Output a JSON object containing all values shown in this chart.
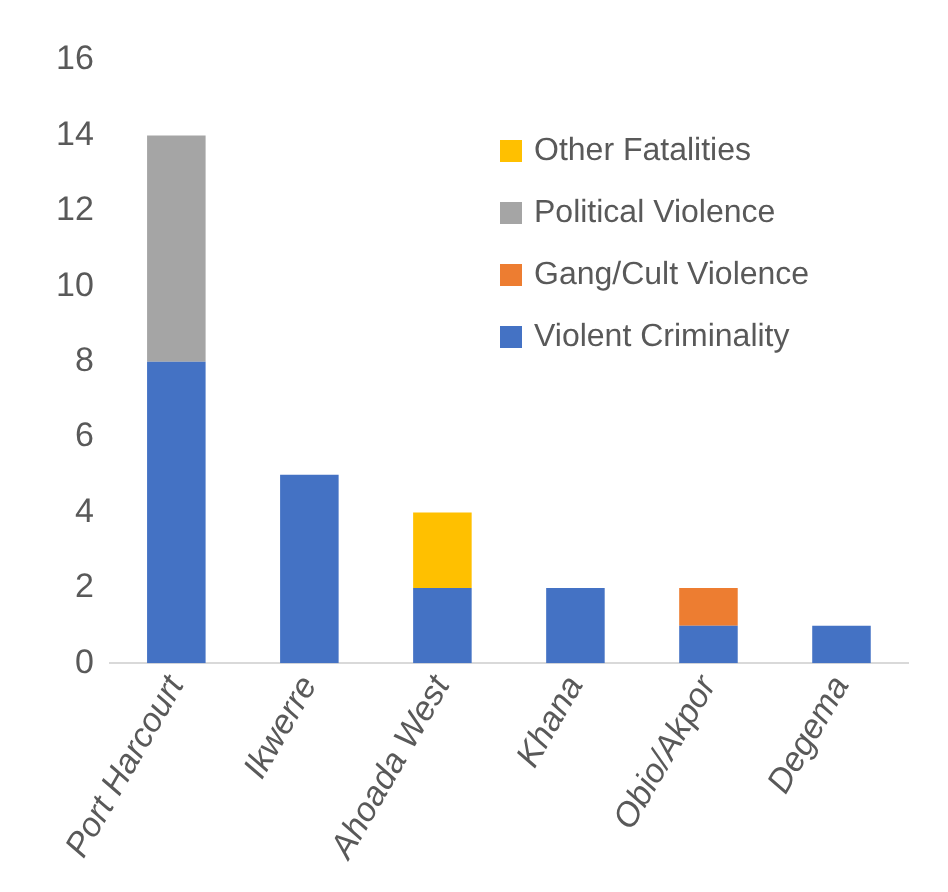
{
  "chart_data": {
    "type": "bar",
    "stacked": true,
    "categories": [
      "Port Harcourt",
      "Ikwerre",
      "Ahoada West",
      "Khana",
      "Obio/Akpor",
      "Degema"
    ],
    "series": [
      {
        "name": "Violent Criminality",
        "color": "#4472c4",
        "values": [
          8,
          5,
          2,
          2,
          1,
          1
        ]
      },
      {
        "name": "Gang/Cult Violence",
        "color": "#ed7d31",
        "values": [
          0,
          0,
          0,
          0,
          1,
          0
        ]
      },
      {
        "name": "Political Violence",
        "color": "#a5a5a5",
        "values": [
          6,
          0,
          0,
          0,
          0,
          0
        ]
      },
      {
        "name": "Other Fatalities",
        "color": "#ffc000",
        "values": [
          0,
          0,
          2,
          0,
          0,
          0
        ]
      }
    ],
    "ylim": [
      0,
      16
    ],
    "yticks": [
      0,
      2,
      4,
      6,
      8,
      10,
      12,
      14,
      16
    ],
    "grid": false,
    "legend": "top right"
  }
}
